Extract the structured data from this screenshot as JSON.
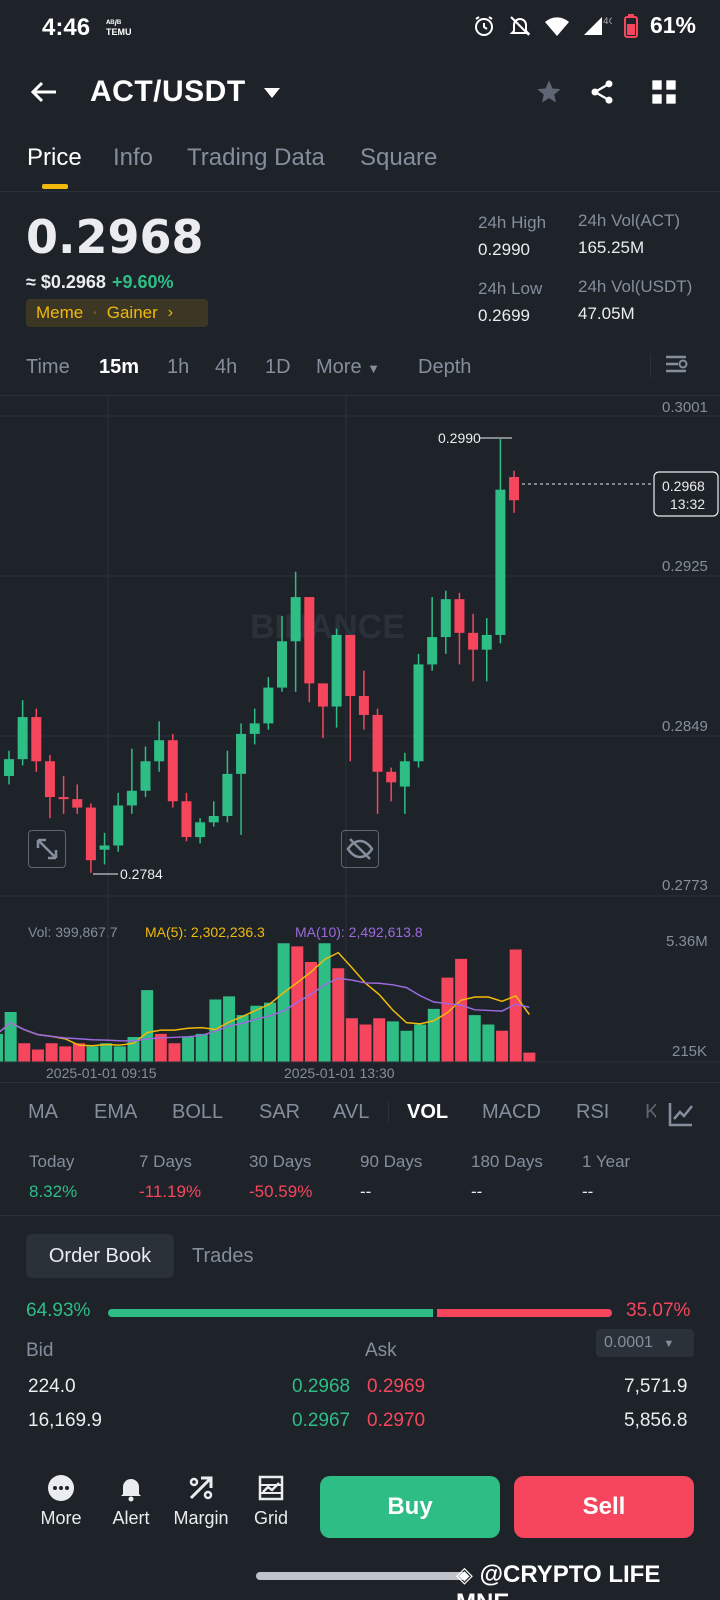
{
  "status_bar": {
    "time": "4:46",
    "temu_line1": "ᴬᴮ/ᴮ",
    "temu_line2": "TEMU",
    "network": "4G",
    "battery": "61%"
  },
  "header": {
    "pair": "ACT/USDT"
  },
  "tabs": [
    "Price",
    "Info",
    "Trading Data",
    "Square"
  ],
  "ticker": {
    "last_price": "0.2968",
    "approx_prefix": "≈ $0.2968",
    "change": "+9.60%",
    "tag1": "Meme",
    "tag2": "Gainer",
    "high_label": "24h High",
    "high_value": "0.2990",
    "low_label": "24h Low",
    "low_value": "0.2699",
    "vol_act_label": "24h Vol(ACT)",
    "vol_act_value": "165.25M",
    "vol_usdt_label": "24h Vol(USDT)",
    "vol_usdt_value": "47.05M"
  },
  "intervals": {
    "time": "Time",
    "m15": "15m",
    "h1": "1h",
    "h4": "4h",
    "d1": "1D",
    "more": "More",
    "depth": "Depth"
  },
  "chart": {
    "price_axis": [
      "0.3001",
      "0.2925",
      "0.2849",
      "0.2773"
    ],
    "high_marker": "0.2990",
    "low_marker": "0.2784",
    "current_price_tag": "0.2968",
    "countdown": "13:32",
    "watermark": "BINANCE",
    "vol_label": "Vol: 399,867.7",
    "ma5_label": "MA(5): 2,302,236.3",
    "ma10_label": "MA(10): 2,492,613.8",
    "vol_axis_top": "5.36M",
    "vol_axis_bottom": "215K",
    "time_label_1": "2025-01-01 09:15",
    "time_label_2": "2025-01-01 13:30",
    "colors": {
      "up": "#2ebd85",
      "down": "#f6465d",
      "ma5": "#f0b90b",
      "ma10": "#9c6ade"
    }
  },
  "indicators": [
    "MA",
    "EMA",
    "BOLL",
    "SAR",
    "AVL",
    "VOL",
    "MACD",
    "RSI",
    "KI"
  ],
  "performance": {
    "labels": [
      "Today",
      "7 Days",
      "30 Days",
      "90 Days",
      "180 Days",
      "1 Year"
    ],
    "values": [
      "8.32%",
      "-11.19%",
      "-50.59%",
      "--",
      "--",
      "--"
    ]
  },
  "order_book": {
    "tab_orderbook": "Order Book",
    "tab_trades": "Trades",
    "bid_pct": "64.93%",
    "ask_pct": "35.07%",
    "bid_ratio": 0.6493,
    "bid_label": "Bid",
    "ask_label": "Ask",
    "precision": "0.0001",
    "rows": [
      {
        "bid_qty": "224.0",
        "bid_price": "0.2968",
        "ask_price": "0.2969",
        "ask_qty": "7,571.9"
      },
      {
        "bid_qty": "16,169.9",
        "bid_price": "0.2967",
        "ask_price": "0.2970",
        "ask_qty": "5,856.8"
      }
    ]
  },
  "bottom_bar": {
    "more": "More",
    "alert": "Alert",
    "margin": "Margin",
    "grid": "Grid",
    "buy": "Buy",
    "sell": "Sell"
  },
  "overlay_watermark": "@CRYPTO LIFE MNE"
}
